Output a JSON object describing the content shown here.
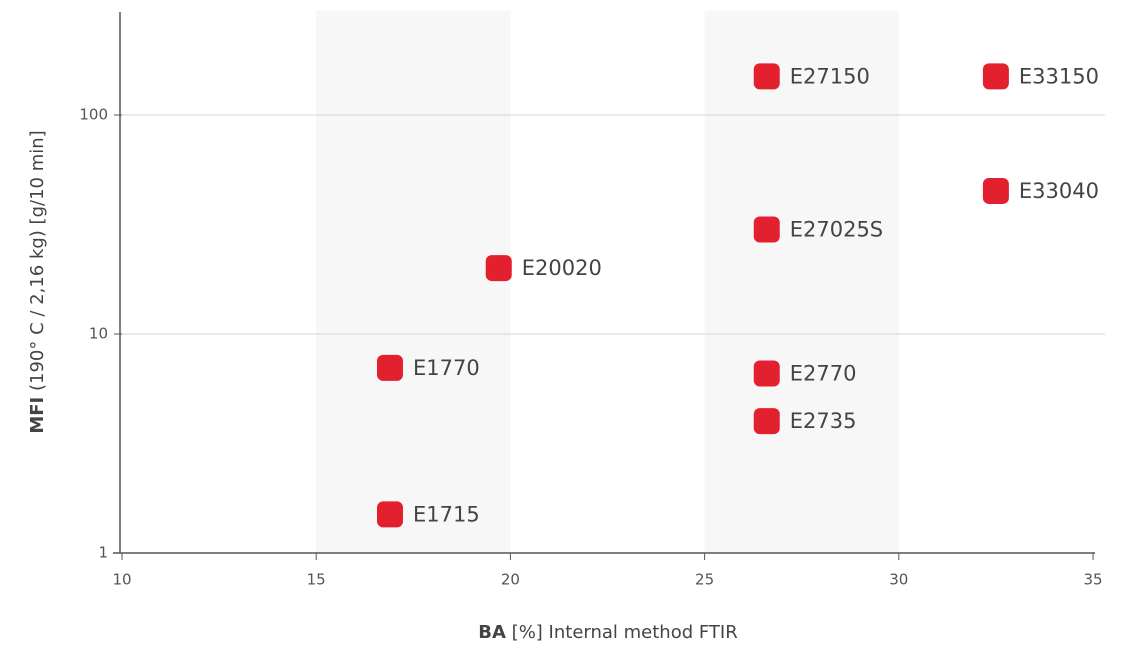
{
  "chart_data": {
    "type": "scatter",
    "x_label_bold": "BA",
    "x_label": "[%] Internal method FTIR",
    "y_label_bold": "MFI",
    "y_label": "(190° C / 2,16 kg) [g/10 min]",
    "xlim": [
      10,
      35
    ],
    "xticks": [
      10,
      15,
      20,
      25,
      30,
      35
    ],
    "ylim": [
      1,
      300
    ],
    "yticks": [
      1,
      10,
      100
    ],
    "log_y": true,
    "grid": true,
    "bands": [
      [
        15,
        20
      ],
      [
        25,
        30
      ]
    ],
    "series": [
      {
        "color": "#e3202e",
        "labels": [
          "E27150",
          "E33150",
          "E33040",
          "E27025S",
          "E20020",
          "E1770",
          "E2770",
          "E2735",
          "E1715"
        ],
        "x": [
          26.6,
          32.5,
          32.5,
          26.6,
          19.7,
          16.9,
          26.6,
          26.6,
          16.9
        ],
        "values": [
          150,
          150,
          45,
          30,
          20,
          7,
          6.6,
          4,
          1.5
        ]
      }
    ]
  }
}
